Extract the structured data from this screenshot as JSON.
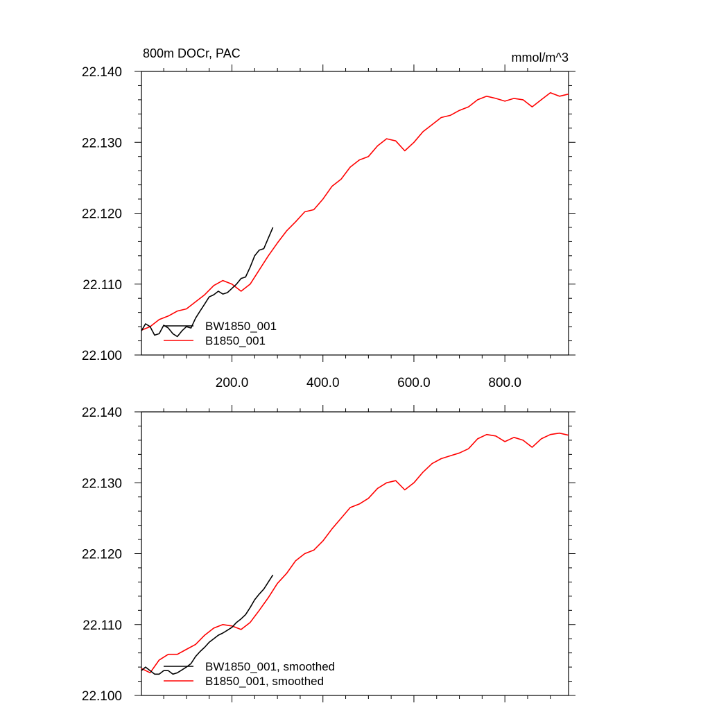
{
  "chart_data": [
    {
      "type": "line",
      "title": "800m DOCr, PAC",
      "units": "mmol/m^3",
      "xlim": [
        1,
        940
      ],
      "ylim": [
        22.1,
        22.14
      ],
      "x_ticks": [
        200,
        400,
        600,
        800
      ],
      "x_tick_labels": [
        "200.0",
        "400.0",
        "600.0",
        "800.0"
      ],
      "y_ticks": [
        22.1,
        22.11,
        22.12,
        22.13,
        22.14
      ],
      "y_tick_labels": [
        "22.100",
        "22.110",
        "22.120",
        "22.130",
        "22.140"
      ],
      "legend_position": "bottom-left",
      "series": [
        {
          "name": "BW1850_001",
          "color": "#000000",
          "x": [
            1,
            10,
            20,
            30,
            40,
            50,
            60,
            70,
            80,
            90,
            100,
            110,
            120,
            130,
            140,
            150,
            160,
            170,
            180,
            190,
            200,
            210,
            220,
            230,
            240,
            250,
            260,
            270,
            280,
            290
          ],
          "y": [
            22.1034,
            22.1044,
            22.104,
            22.1028,
            22.103,
            22.1042,
            22.1038,
            22.103,
            22.1026,
            22.1034,
            22.104,
            22.1038,
            22.1052,
            22.1062,
            22.1072,
            22.1082,
            22.1085,
            22.109,
            22.1086,
            22.1088,
            22.1094,
            22.11,
            22.1108,
            22.111,
            22.1124,
            22.114,
            22.1148,
            22.115,
            22.1165,
            22.118
          ]
        },
        {
          "name": "B1850_001",
          "color": "#ff0000",
          "x": [
            1,
            20,
            40,
            60,
            80,
            100,
            120,
            140,
            160,
            180,
            200,
            220,
            240,
            260,
            280,
            300,
            320,
            340,
            360,
            380,
            400,
            420,
            440,
            460,
            480,
            500,
            520,
            540,
            560,
            580,
            600,
            620,
            640,
            660,
            680,
            700,
            720,
            740,
            760,
            780,
            800,
            820,
            840,
            860,
            880,
            900,
            920,
            940
          ],
          "y": [
            22.1035,
            22.104,
            22.105,
            22.1055,
            22.1062,
            22.1065,
            22.1075,
            22.1085,
            22.1098,
            22.1105,
            22.11,
            22.109,
            22.11,
            22.112,
            22.114,
            22.1158,
            22.1175,
            22.1188,
            22.1202,
            22.1205,
            22.122,
            22.1238,
            22.1248,
            22.1265,
            22.1275,
            22.128,
            22.1295,
            22.1305,
            22.1302,
            22.1288,
            22.13,
            22.1315,
            22.1325,
            22.1335,
            22.1338,
            22.1345,
            22.135,
            22.136,
            22.1365,
            22.1362,
            22.1358,
            22.1362,
            22.136,
            22.135,
            22.136,
            22.137,
            22.1365,
            22.1368
          ]
        }
      ]
    },
    {
      "type": "line",
      "xlim": [
        1,
        940
      ],
      "ylim": [
        22.1,
        22.14
      ],
      "x_ticks": [
        200,
        400,
        600,
        800
      ],
      "y_ticks": [
        22.1,
        22.11,
        22.12,
        22.13,
        22.14
      ],
      "y_tick_labels": [
        "22.100",
        "22.110",
        "22.120",
        "22.130",
        "22.140"
      ],
      "legend_position": "bottom-left",
      "series": [
        {
          "name": "BW1850_001, smoothed",
          "color": "#000000",
          "x": [
            1,
            10,
            20,
            30,
            40,
            50,
            60,
            70,
            80,
            90,
            100,
            110,
            120,
            130,
            140,
            150,
            160,
            170,
            180,
            190,
            200,
            210,
            220,
            230,
            240,
            250,
            260,
            270,
            280,
            290
          ],
          "y": [
            22.1035,
            22.104,
            22.1035,
            22.103,
            22.103,
            22.1035,
            22.1035,
            22.103,
            22.1032,
            22.1036,
            22.104,
            22.1045,
            22.1055,
            22.1062,
            22.1068,
            22.1075,
            22.108,
            22.1085,
            22.1088,
            22.1092,
            22.1096,
            22.1103,
            22.1108,
            22.1114,
            22.1124,
            22.1135,
            22.1143,
            22.115,
            22.116,
            22.117
          ]
        },
        {
          "name": "B1850_001, smoothed",
          "color": "#ff0000",
          "x": [
            1,
            20,
            40,
            60,
            80,
            100,
            120,
            140,
            160,
            180,
            200,
            220,
            240,
            260,
            280,
            300,
            320,
            340,
            360,
            380,
            400,
            420,
            440,
            460,
            480,
            500,
            520,
            540,
            560,
            580,
            600,
            620,
            640,
            660,
            680,
            700,
            720,
            740,
            760,
            780,
            800,
            820,
            840,
            860,
            880,
            900,
            920,
            940
          ],
          "y": [
            22.1038,
            22.1032,
            22.105,
            22.1058,
            22.1058,
            22.1065,
            22.1072,
            22.1085,
            22.1095,
            22.11,
            22.1098,
            22.1093,
            22.1103,
            22.112,
            22.1138,
            22.1158,
            22.1172,
            22.119,
            22.12,
            22.1205,
            22.1218,
            22.1235,
            22.125,
            22.1265,
            22.127,
            22.1278,
            22.1292,
            22.13,
            22.1303,
            22.129,
            22.13,
            22.1315,
            22.1327,
            22.1334,
            22.1338,
            22.1342,
            22.1348,
            22.1362,
            22.1368,
            22.1366,
            22.1358,
            22.1364,
            22.136,
            22.135,
            22.1362,
            22.1368,
            22.137,
            22.1367
          ]
        }
      ]
    }
  ]
}
